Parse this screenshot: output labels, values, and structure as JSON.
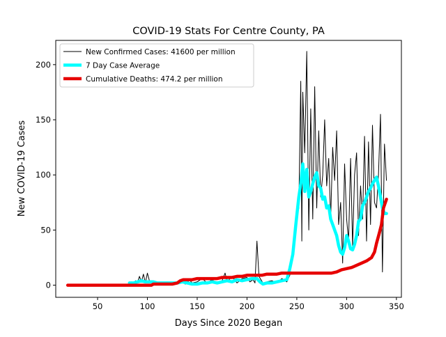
{
  "chart_data": {
    "type": "line",
    "title": "COVID-19 Stats For Centre County, PA",
    "xlabel": "Days Since 2020 Began",
    "ylabel": "New COVID-19 Cases",
    "xlim": [
      8,
      355
    ],
    "ylim": [
      -11,
      222
    ],
    "xticks": [
      50,
      100,
      150,
      200,
      250,
      300,
      350
    ],
    "yticks": [
      0,
      50,
      100,
      150,
      200
    ],
    "grid": false,
    "legend_position": "top-left",
    "series": [
      {
        "name": "New Confirmed Cases: 41600 per million",
        "color": "#000000",
        "x": [
          82,
          84,
          86,
          88,
          90,
          92,
          94,
          96,
          98,
          100,
          102,
          104,
          106,
          110,
          115,
          120,
          125,
          130,
          135,
          138,
          140,
          142,
          145,
          150,
          155,
          160,
          165,
          170,
          175,
          178,
          180,
          185,
          190,
          195,
          200,
          203,
          206,
          208,
          210,
          212,
          214,
          216,
          220,
          225,
          230,
          235,
          240,
          243,
          246,
          249,
          252,
          254,
          255,
          256,
          258,
          260,
          262,
          264,
          266,
          268,
          270,
          272,
          274,
          276,
          278,
          280,
          282,
          284,
          286,
          288,
          290,
          292,
          294,
          296,
          298,
          300,
          302,
          304,
          306,
          308,
          310,
          312,
          314,
          316,
          318,
          320,
          322,
          324,
          326,
          328,
          330,
          332,
          334,
          336,
          338,
          340
        ],
        "y": [
          1,
          3,
          0,
          4,
          2,
          8,
          3,
          10,
          2,
          11,
          4,
          2,
          1,
          2,
          1,
          3,
          1,
          2,
          4,
          1,
          2,
          5,
          2,
          3,
          6,
          2,
          5,
          1,
          4,
          11,
          3,
          8,
          2,
          6,
          7,
          3,
          5,
          2,
          40,
          8,
          5,
          2,
          3,
          4,
          2,
          6,
          3,
          9,
          30,
          55,
          70,
          185,
          40,
          175,
          120,
          212,
          50,
          160,
          60,
          180,
          70,
          140,
          80,
          100,
          150,
          90,
          115,
          60,
          125,
          95,
          140,
          55,
          75,
          20,
          110,
          60,
          40,
          115,
          35,
          100,
          120,
          45,
          90,
          60,
          135,
          40,
          130,
          55,
          145,
          75,
          70,
          100,
          155,
          12,
          128,
          95
        ]
      },
      {
        "name": "7 Day Case Average",
        "color": "#00ffff",
        "x": [
          82,
          86,
          90,
          94,
          98,
          102,
          106,
          110,
          130,
          135,
          140,
          145,
          150,
          155,
          160,
          165,
          170,
          175,
          180,
          185,
          190,
          195,
          200,
          205,
          210,
          213,
          216,
          220,
          225,
          230,
          235,
          240,
          243,
          246,
          249,
          252,
          254,
          256,
          258,
          260,
          262,
          264,
          266,
          268,
          270,
          272,
          274,
          276,
          278,
          280,
          282,
          284,
          286,
          288,
          290,
          292,
          294,
          296,
          298,
          300,
          302,
          304,
          306,
          308,
          310,
          312,
          314,
          316,
          318,
          320,
          322,
          324,
          326,
          328,
          330,
          332,
          334,
          336,
          338,
          340
        ],
        "y": [
          2,
          2,
          3,
          4,
          3,
          3,
          3,
          2,
          2,
          3,
          2,
          1,
          1,
          2,
          2,
          3,
          2,
          3,
          4,
          3,
          5,
          4,
          5,
          6,
          6,
          3,
          1,
          2,
          2,
          3,
          4,
          5,
          15,
          28,
          55,
          80,
          92,
          110,
          85,
          105,
          80,
          85,
          92,
          98,
          102,
          90,
          88,
          78,
          80,
          70,
          72,
          60,
          55,
          50,
          45,
          36,
          30,
          28,
          34,
          45,
          40,
          33,
          32,
          37,
          45,
          58,
          60,
          72,
          75,
          80,
          85,
          88,
          92,
          95,
          98,
          90,
          80,
          70,
          65,
          65
        ]
      },
      {
        "name": "Cumulative Deaths: 474.2 per million",
        "color": "#e60000",
        "x": [
          20,
          40,
          60,
          80,
          100,
          104,
          106,
          110,
          115,
          120,
          125,
          130,
          133,
          136,
          140,
          145,
          150,
          155,
          160,
          165,
          170,
          175,
          180,
          185,
          190,
          195,
          200,
          205,
          210,
          215,
          220,
          225,
          230,
          235,
          240,
          245,
          250,
          255,
          260,
          265,
          270,
          275,
          280,
          285,
          290,
          295,
          300,
          305,
          310,
          315,
          320,
          325,
          328,
          330,
          333,
          335,
          337,
          340
        ],
        "y": [
          0,
          0,
          0,
          0,
          0,
          0,
          1,
          1,
          1,
          1,
          1,
          2,
          4,
          5,
          5,
          5,
          6,
          6,
          6,
          6,
          6,
          7,
          7,
          7,
          8,
          8,
          9,
          9,
          9,
          9,
          10,
          10,
          10,
          11,
          11,
          11,
          11,
          11,
          11,
          11,
          11,
          11,
          11,
          11,
          12,
          14,
          15,
          16,
          18,
          20,
          22,
          25,
          30,
          38,
          48,
          55,
          70,
          78
        ]
      }
    ]
  }
}
